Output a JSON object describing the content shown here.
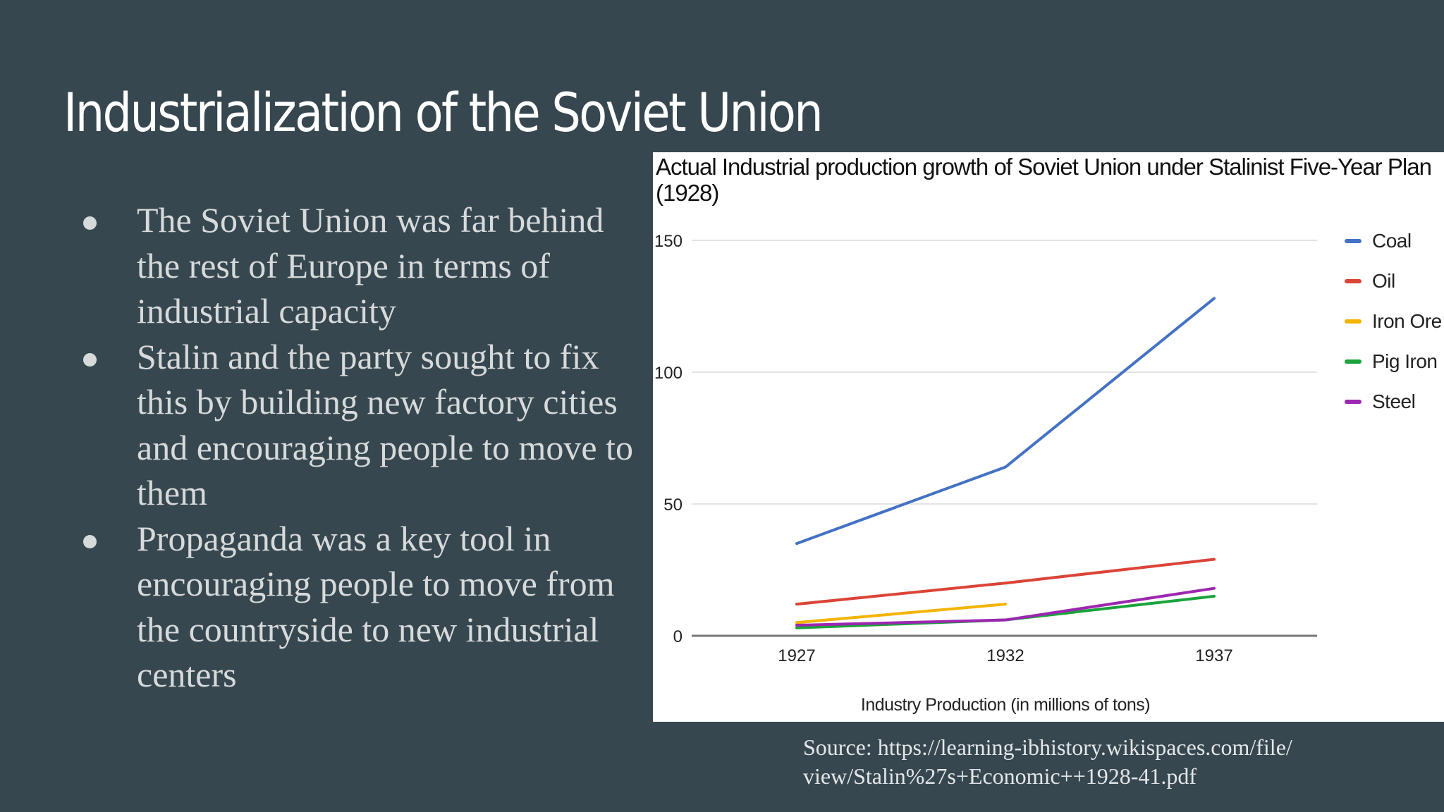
{
  "slide": {
    "title": "Industrialization of the Soviet Union",
    "bullets": [
      "The Soviet Union was far behind the rest of Europe in terms of industrial capacity",
      "Stalin and the party sought to fix this by building new factory cities and encouraging people to move to them",
      "Propaganda was a key tool in encouraging people to move from the countryside to new industrial centers"
    ],
    "source_line1": "Source: https://learning-ibhistory.wikispaces.com/file/",
    "source_line2": "view/Stalin%27s+Economic++1928-41.pdf"
  },
  "colors": {
    "background": "#37474f",
    "panel": "#ffffff"
  },
  "chart_data": {
    "type": "line",
    "title": "Actual Industrial production growth of Soviet Union under Stalinist Five-Year Plan (1928)",
    "xlabel": "Industry Production (in millions of tons)",
    "ylabel": "",
    "x": [
      "1927",
      "1932",
      "1937"
    ],
    "ylim": [
      0,
      150
    ],
    "yticks": [
      0,
      50,
      100,
      150
    ],
    "grid": true,
    "legend_position": "right",
    "series": [
      {
        "name": "Coal",
        "color": "#4472c4",
        "values": [
          35,
          64,
          128
        ]
      },
      {
        "name": "Oil",
        "color": "#db4437",
        "values": [
          12,
          20,
          29
        ]
      },
      {
        "name": "Iron Ore",
        "color": "#f4b400",
        "values": [
          5,
          12,
          null
        ]
      },
      {
        "name": "Pig Iron",
        "color": "#1aa33b",
        "values": [
          3,
          6,
          15
        ]
      },
      {
        "name": "Steel",
        "color": "#9c27b0",
        "values": [
          4,
          6,
          18
        ]
      }
    ]
  }
}
